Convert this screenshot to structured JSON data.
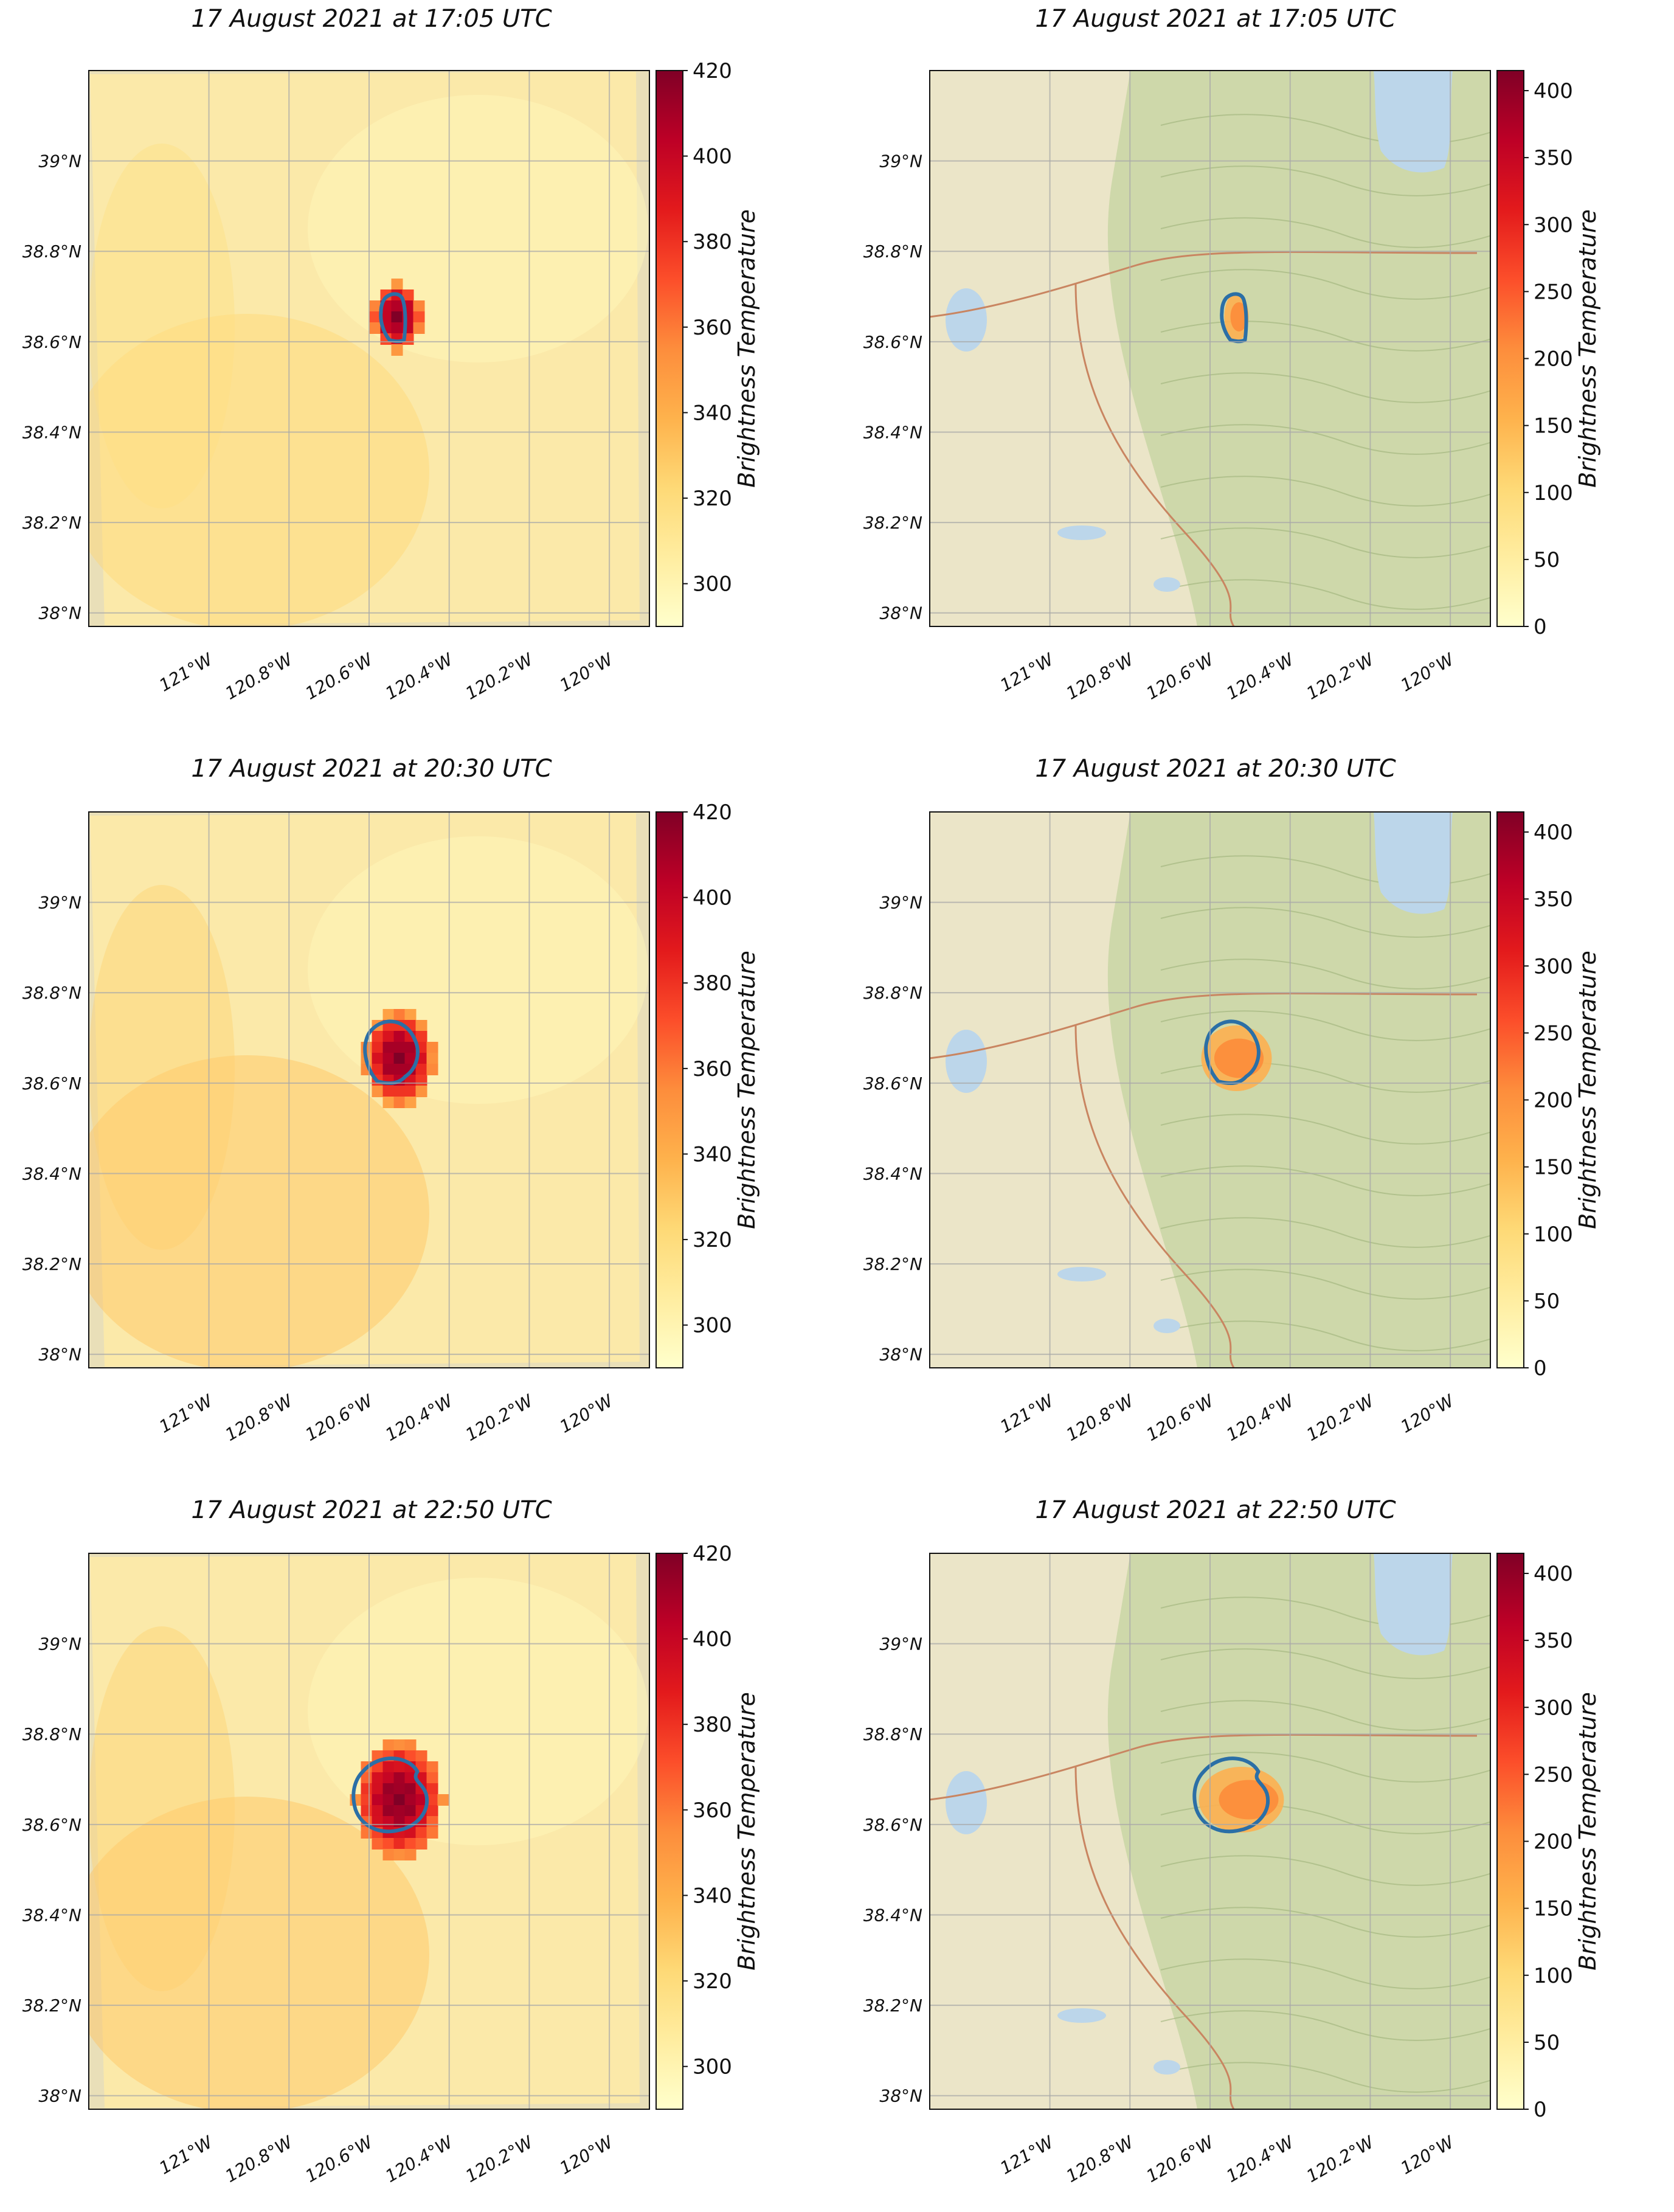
{
  "figure": {
    "panels": [
      {
        "title": "17 August 2021 at 17:05 UTC",
        "background": "satellite",
        "colorbar": {
          "label": "Brightness Temperature",
          "ticks": [
            "300",
            "320",
            "340",
            "360",
            "380",
            "400",
            "420"
          ],
          "range": [
            290,
            420
          ]
        },
        "fire_level": 1
      },
      {
        "title": "17 August 2021 at 17:05 UTC",
        "background": "basemap",
        "colorbar": {
          "label": "Brightness Temperature",
          "ticks": [
            "0",
            "50",
            "100",
            "150",
            "200",
            "250",
            "300",
            "350",
            "400"
          ],
          "range": [
            0,
            415
          ]
        },
        "fire_level": 1
      },
      {
        "title": "17 August 2021 at 20:30 UTC",
        "background": "satellite",
        "colorbar": {
          "label": "Brightness Temperature",
          "ticks": [
            "300",
            "320",
            "340",
            "360",
            "380",
            "400",
            "420"
          ],
          "range": [
            290,
            420
          ]
        },
        "fire_level": 2
      },
      {
        "title": "17 August 2021 at 20:30 UTC",
        "background": "basemap",
        "colorbar": {
          "label": "Brightness Temperature",
          "ticks": [
            "0",
            "50",
            "100",
            "150",
            "200",
            "250",
            "300",
            "350",
            "400"
          ],
          "range": [
            0,
            415
          ]
        },
        "fire_level": 2
      },
      {
        "title": "17 August 2021 at 22:50 UTC",
        "background": "satellite",
        "colorbar": {
          "label": "Brightness Temperature",
          "ticks": [
            "300",
            "320",
            "340",
            "360",
            "380",
            "400",
            "420"
          ],
          "range": [
            290,
            420
          ]
        },
        "fire_level": 3
      },
      {
        "title": "17 August 2021 at 22:50 UTC",
        "background": "basemap",
        "colorbar": {
          "label": "Brightness Temperature",
          "ticks": [
            "0",
            "50",
            "100",
            "150",
            "200",
            "250",
            "300",
            "350",
            "400"
          ],
          "range": [
            0,
            415
          ]
        },
        "fire_level": 3
      }
    ],
    "lat_labels": [
      "39°N",
      "38.8°N",
      "38.6°N",
      "38.4°N",
      "38.2°N",
      "38°N"
    ],
    "lon_labels": [
      "121°W",
      "120.8°W",
      "120.6°W",
      "120.4°W",
      "120.2°W",
      "120°W"
    ],
    "colors": {
      "satellite_bg": "#fbe9a9",
      "basemap_bg": "#ebe5c8",
      "terrain": "#c9d6a4",
      "lake": "#bcd6ea",
      "fire_perimeter": "#2b6fa6",
      "gridline": "#a9a9a9"
    }
  }
}
